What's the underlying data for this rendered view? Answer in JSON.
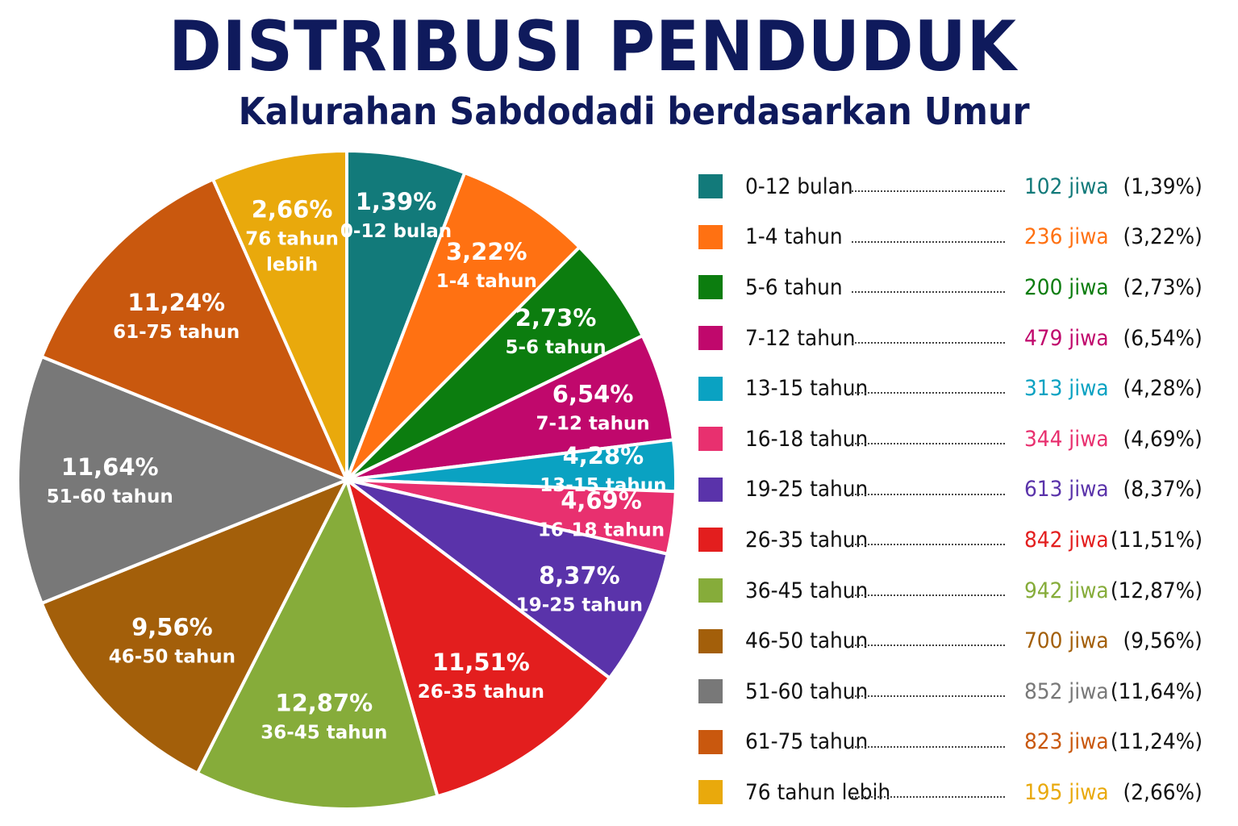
{
  "chart_data": {
    "type": "pie",
    "title": "DISTRIBUSI PENDUDUK",
    "subtitle": "Kalurahan Sabdodadi berdasarkan Umur",
    "slices": [
      {
        "label": "0-12 bulan",
        "pct_label": "1,39%",
        "value": 1.39,
        "count_label": "102 jiwa",
        "legend_pct": "(1,39%)",
        "color": "#127a7a"
      },
      {
        "label": "1-4 tahun",
        "pct_label": "3,22%",
        "value": 3.22,
        "count_label": "236 jiwa",
        "legend_pct": "(3,22%)",
        "color": "#ff7112"
      },
      {
        "label": "5-6 tahun",
        "pct_label": "2,73%",
        "value": 2.73,
        "count_label": "200 jiwa",
        "legend_pct": "(2,73%)",
        "color": "#0c7d0f"
      },
      {
        "label": "7-12 tahun",
        "pct_label": "6,54%",
        "value": 6.54,
        "count_label": "479 jiwa",
        "legend_pct": "(6,54%)",
        "color": "#c0086c"
      },
      {
        "label": "13-15 tahun",
        "pct_label": "4,28%",
        "value": 4.28,
        "count_label": "313 jiwa",
        "legend_pct": "(4,28%)",
        "color": "#0aa2c2"
      },
      {
        "label": "16-18 tahun",
        "pct_label": "4,69%",
        "value": 4.69,
        "count_label": "344 jiwa",
        "legend_pct": "(4,69%)",
        "color": "#e8306f"
      },
      {
        "label": "19-25 tahun",
        "pct_label": "8,37%",
        "value": 8.37,
        "count_label": "613 jiwa",
        "legend_pct": "(8,37%)",
        "color": "#5a33aa"
      },
      {
        "label": "26-35 tahun",
        "pct_label": "11,51%",
        "value": 11.51,
        "count_label": "842 jiwa",
        "legend_pct": "(11,51%)",
        "color": "#e31e1e"
      },
      {
        "label": "36-45 tahun",
        "pct_label": "12,87%",
        "value": 12.87,
        "count_label": "942 jiwa",
        "legend_pct": "(12,87%)",
        "color": "#86ac3a"
      },
      {
        "label": "46-50 tahun",
        "pct_label": "9,56%",
        "value": 9.56,
        "count_label": "700 jiwa",
        "legend_pct": "(9,56%)",
        "color": "#a35f0a"
      },
      {
        "label": "51-60 tahun",
        "pct_label": "11,64%",
        "value": 11.64,
        "count_label": "852 jiwa",
        "legend_pct": "(11,64%)",
        "color": "#787878"
      },
      {
        "label": "61-75 tahun",
        "pct_label": "11,24%",
        "value": 11.24,
        "count_label": "823 jiwa",
        "legend_pct": "(11,24%)",
        "color": "#c9580e"
      },
      {
        "label": "76 tahun lebih",
        "pct_label": "2,66%",
        "value": 2.66,
        "count_label": "195 jiwa",
        "legend_pct": "(2,66%)",
        "color": "#e9a90c"
      }
    ]
  }
}
